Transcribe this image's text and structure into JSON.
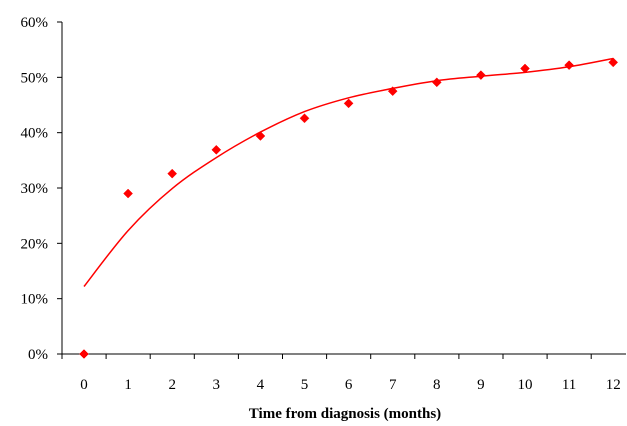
{
  "chart_data": {
    "type": "scatter",
    "title": "",
    "xlabel": "Time from diagnosis (months)",
    "ylabel": "",
    "xlim": [
      0,
      12
    ],
    "ylim": [
      0,
      60
    ],
    "x_ticks": [
      0,
      1,
      2,
      3,
      4,
      5,
      6,
      7,
      8,
      9,
      10,
      11,
      12
    ],
    "x_tick_labels": [
      "0",
      "1",
      "2",
      "3",
      "4",
      "5",
      "6",
      "7",
      "8",
      "9",
      "10",
      "11",
      "12"
    ],
    "y_ticks": [
      0,
      10,
      20,
      30,
      40,
      50,
      60
    ],
    "y_tick_labels": [
      "0%",
      "10%",
      "20%",
      "30%",
      "40%",
      "50%",
      "60%"
    ],
    "grid": false,
    "legend": "none",
    "series": [
      {
        "kind": "points",
        "marker": "diamond",
        "color": "#ff0000",
        "x": [
          0,
          1,
          2,
          3,
          4,
          5,
          6,
          7,
          8,
          9,
          10,
          11,
          12
        ],
        "y": [
          0,
          29,
          32.6,
          36.9,
          39.4,
          42.6,
          45.3,
          47.5,
          49.1,
          50.4,
          51.6,
          52.2,
          52.7
        ]
      },
      {
        "kind": "trendline",
        "color": "#ff0000",
        "x": [
          0,
          1,
          2,
          3,
          4,
          5,
          6,
          7,
          8,
          9,
          10,
          11,
          12
        ],
        "y": [
          12.2,
          22.3,
          29.9,
          35.5,
          40.1,
          43.8,
          46.3,
          48.0,
          49.4,
          50.2,
          50.9,
          51.9,
          53.4
        ]
      }
    ]
  }
}
